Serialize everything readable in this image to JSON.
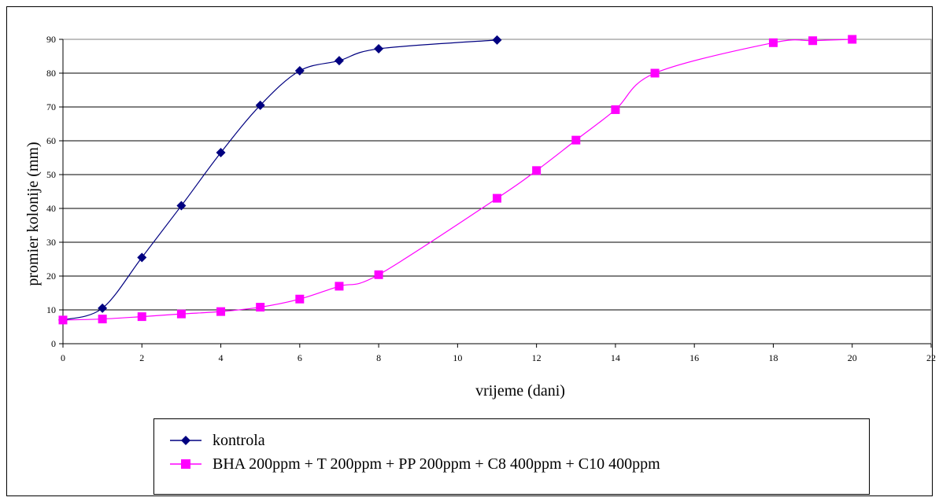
{
  "chart_data": {
    "type": "line",
    "title": "",
    "xlabel": "vrijeme (dani)",
    "ylabel": "promier kolonije (mm)",
    "xlim": [
      0,
      22
    ],
    "ylim": [
      0,
      90
    ],
    "x_ticks": [
      0,
      2,
      4,
      6,
      8,
      10,
      12,
      14,
      16,
      18,
      20,
      22
    ],
    "y_ticks": [
      0,
      10,
      20,
      30,
      40,
      50,
      60,
      70,
      80,
      90
    ],
    "grid": "horizontal",
    "legend_position": "bottom",
    "series": [
      {
        "name": "kontrola",
        "color": "#000080",
        "marker": "diamond",
        "points": [
          [
            0,
            7
          ],
          [
            1,
            10.5
          ],
          [
            2,
            25.5
          ],
          [
            3,
            40.8
          ],
          [
            4,
            56.5
          ],
          [
            5,
            70.5
          ],
          [
            6,
            80.7
          ],
          [
            7,
            83.7
          ],
          [
            8,
            87.2
          ],
          [
            11,
            89.8
          ]
        ]
      },
      {
        "name": "BHA 200ppm + T 200ppm + PP 200ppm + C8 400ppm + C10 400ppm",
        "color": "#ff00ff",
        "marker": "square",
        "points": [
          [
            0,
            7
          ],
          [
            1,
            7.3
          ],
          [
            2,
            8
          ],
          [
            3,
            8.8
          ],
          [
            4,
            9.5
          ],
          [
            5,
            10.8
          ],
          [
            6,
            13.2
          ],
          [
            7,
            17
          ],
          [
            8,
            20.4
          ],
          [
            11,
            43
          ],
          [
            12,
            51.2
          ],
          [
            13,
            60.2
          ],
          [
            14,
            69.2
          ],
          [
            15,
            80
          ],
          [
            18,
            89
          ],
          [
            19,
            89.6
          ],
          [
            20,
            90
          ]
        ]
      }
    ]
  }
}
